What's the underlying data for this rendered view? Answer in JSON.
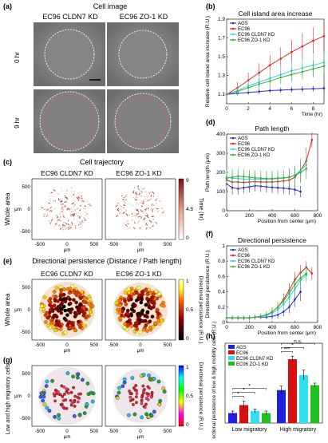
{
  "figure": {
    "panels": {
      "a": {
        "letter": "(a)",
        "title": "Cell image",
        "col1": "EC96 CLDN7 KD",
        "col2": "EC96 ZO-1 KD",
        "row1": "0 hr",
        "row2": "9 hr"
      },
      "c": {
        "letter": "(c)",
        "title": "Cell trajectory",
        "col1": "EC96 CLDN7 KD",
        "col2": "EC96 ZO-1 KD",
        "row_label": "Whole area",
        "colorbar_label": "Time (hr)",
        "colorbar_ticks": [
          "9",
          "4.5",
          "0"
        ]
      },
      "e": {
        "letter": "(e)",
        "title": "Directional persistence (Distance / Path length)",
        "col1": "EC96 CLDN7 KD",
        "col2": "EC96 ZO-1 KD",
        "row_label": "Whole area",
        "colorbar_label": "Directional persistence (R.U.)",
        "colorbar_ticks": [
          "1",
          "0.5",
          "0"
        ]
      },
      "g": {
        "letter": "(g)",
        "row_label": "Low and high migratory cells",
        "colorbar_label": "Directional persistence (R.U.)",
        "colorbar_ticks": [
          "1",
          "0.5",
          "0"
        ]
      },
      "b": {
        "letter": "(b)"
      },
      "d": {
        "letter": "(d)"
      },
      "f": {
        "letter": "(f)"
      },
      "h": {
        "letter": "(h)"
      }
    },
    "map_axes": {
      "x_ticks": [
        "-500",
        "0",
        "500"
      ],
      "y_ticks": [
        "500",
        "0",
        "-500"
      ],
      "unit": "μm"
    }
  },
  "chart_data": [
    {
      "id": "b",
      "type": "line",
      "title": "Cell island area increase",
      "xlabel": "Time (hr)",
      "ylabel": "Relative cell island area increase (R.U.)",
      "xlim": [
        0,
        9
      ],
      "ylim": [
        1.0,
        1.9
      ],
      "x_ticks": [
        0,
        2,
        4,
        6,
        8
      ],
      "y_ticks": [
        1.1,
        1.3,
        1.5,
        1.7,
        1.9
      ],
      "x": [
        0,
        1,
        2,
        3,
        4,
        5,
        6,
        7,
        8,
        9
      ],
      "legend": "top-left",
      "series": [
        {
          "name": "AGS",
          "color": "#2b2bd8",
          "values": [
            1.1,
            1.11,
            1.12,
            1.13,
            1.14,
            1.145,
            1.15,
            1.155,
            1.16,
            1.165
          ],
          "err": [
            0.02,
            0.02,
            0.025,
            0.025,
            0.025,
            0.03,
            0.03,
            0.03,
            0.03,
            0.03
          ]
        },
        {
          "name": "EC96",
          "color": "#e0261f",
          "values": [
            1.1,
            1.17,
            1.25,
            1.33,
            1.41,
            1.48,
            1.55,
            1.61,
            1.67,
            1.72
          ],
          "err": [
            0.03,
            0.06,
            0.08,
            0.1,
            0.11,
            0.12,
            0.13,
            0.14,
            0.14,
            0.15
          ]
        },
        {
          "name": "EC96 CLDN7 KD",
          "color": "#35d3e8",
          "values": [
            1.1,
            1.14,
            1.19,
            1.23,
            1.27,
            1.31,
            1.35,
            1.38,
            1.41,
            1.44
          ],
          "err": [
            0.02,
            0.05,
            0.06,
            0.07,
            0.08,
            0.09,
            0.1,
            0.1,
            0.11,
            0.11
          ]
        },
        {
          "name": "EC96 ZO-1 KD",
          "color": "#3cb43c",
          "values": [
            1.1,
            1.13,
            1.17,
            1.21,
            1.24,
            1.28,
            1.31,
            1.34,
            1.37,
            1.4
          ],
          "err": [
            0.02,
            0.04,
            0.05,
            0.06,
            0.07,
            0.07,
            0.08,
            0.08,
            0.09,
            0.09
          ]
        }
      ]
    },
    {
      "id": "d",
      "type": "line",
      "title": "Path length",
      "xlabel": "Position from center (μm)",
      "ylabel": "Path length (μm)",
      "xlim": [
        0,
        800
      ],
      "ylim": [
        0,
        400
      ],
      "x_ticks": [
        0,
        200,
        400,
        600,
        800
      ],
      "y_ticks": [
        0,
        100,
        200,
        300,
        400
      ],
      "x": [
        0,
        50,
        100,
        150,
        200,
        250,
        300,
        350,
        400,
        450,
        500,
        550,
        600,
        650,
        700,
        750
      ],
      "legend": "top-left",
      "series": [
        {
          "name": "AGS",
          "color": "#2b2bd8",
          "values": [
            140,
            120,
            115,
            120,
            125,
            130,
            128,
            125,
            122,
            120,
            118,
            115,
            110,
            100,
            null,
            null
          ],
          "err": [
            40,
            35,
            30,
            30,
            30,
            30,
            30,
            30,
            30,
            30,
            30,
            30,
            30,
            30,
            null,
            null
          ]
        },
        {
          "name": "EC96",
          "color": "#e0261f",
          "values": [
            160,
            150,
            150,
            148,
            150,
            152,
            150,
            150,
            150,
            152,
            155,
            160,
            175,
            210,
            260,
            370
          ],
          "err": [
            45,
            40,
            40,
            40,
            40,
            40,
            40,
            40,
            40,
            40,
            40,
            45,
            50,
            60,
            70,
            40
          ]
        },
        {
          "name": "EC96 CLDN7 KD",
          "color": "#35d3e8",
          "values": [
            175,
            170,
            168,
            165,
            165,
            165,
            165,
            165,
            165,
            168,
            170,
            175,
            185,
            210,
            240,
            null
          ],
          "err": [
            45,
            40,
            40,
            40,
            40,
            40,
            40,
            40,
            40,
            40,
            40,
            45,
            50,
            55,
            60,
            null
          ]
        },
        {
          "name": "EC96 ZO-1 KD",
          "color": "#3cb43c",
          "values": [
            170,
            175,
            180,
            178,
            175,
            172,
            170,
            168,
            168,
            170,
            172,
            175,
            185,
            200,
            220,
            null
          ],
          "err": [
            45,
            40,
            40,
            40,
            40,
            40,
            40,
            40,
            40,
            40,
            40,
            45,
            50,
            55,
            55,
            null
          ]
        }
      ]
    },
    {
      "id": "f",
      "type": "line",
      "title": "Directional persistence",
      "xlabel": "Position from center (μm)",
      "ylabel": "Directional persistence (R.U.)",
      "xlim": [
        0,
        800
      ],
      "ylim": [
        0,
        1
      ],
      "x_ticks": [
        0,
        200,
        400,
        600,
        800
      ],
      "y_ticks": [
        0,
        0.2,
        0.4,
        0.6,
        0.8,
        1
      ],
      "x": [
        0,
        50,
        100,
        150,
        200,
        250,
        300,
        350,
        400,
        450,
        500,
        550,
        600,
        650,
        700,
        750
      ],
      "legend": "top-left",
      "series": [
        {
          "name": "AGS",
          "color": "#2b2bd8",
          "values": [
            0.06,
            0.06,
            0.06,
            0.06,
            0.06,
            0.07,
            0.07,
            0.07,
            0.08,
            0.1,
            0.14,
            0.2,
            0.3,
            0.4,
            null,
            null
          ],
          "err": [
            0.03,
            0.03,
            0.03,
            0.03,
            0.03,
            0.03,
            0.03,
            0.03,
            0.04,
            0.05,
            0.06,
            0.08,
            0.1,
            0.12,
            null,
            null
          ]
        },
        {
          "name": "EC96",
          "color": "#e0261f",
          "values": [
            0.06,
            0.06,
            0.06,
            0.06,
            0.06,
            0.07,
            0.08,
            0.1,
            0.14,
            0.2,
            0.3,
            0.42,
            0.56,
            0.65,
            0.72,
            0.64
          ],
          "err": [
            0.03,
            0.03,
            0.03,
            0.03,
            0.03,
            0.03,
            0.04,
            0.05,
            0.06,
            0.07,
            0.08,
            0.09,
            0.1,
            0.1,
            0.08,
            0.08
          ]
        },
        {
          "name": "EC96 CLDN7 KD",
          "color": "#35d3e8",
          "values": [
            0.06,
            0.06,
            0.06,
            0.06,
            0.06,
            0.07,
            0.08,
            0.09,
            0.12,
            0.17,
            0.24,
            0.33,
            0.44,
            0.55,
            0.62,
            null
          ],
          "err": [
            0.03,
            0.03,
            0.03,
            0.03,
            0.03,
            0.03,
            0.04,
            0.05,
            0.06,
            0.07,
            0.08,
            0.09,
            0.1,
            0.1,
            0.1,
            null
          ]
        },
        {
          "name": "EC96 ZO-1 KD",
          "color": "#3cb43c",
          "values": [
            0.06,
            0.06,
            0.06,
            0.06,
            0.06,
            0.07,
            0.08,
            0.1,
            0.14,
            0.2,
            0.28,
            0.38,
            0.5,
            0.58,
            0.64,
            null
          ],
          "err": [
            0.03,
            0.03,
            0.03,
            0.03,
            0.03,
            0.03,
            0.04,
            0.05,
            0.06,
            0.07,
            0.08,
            0.09,
            0.1,
            0.1,
            0.1,
            null
          ]
        }
      ]
    },
    {
      "id": "h",
      "type": "bar",
      "title": "",
      "ylabel": "Directional persistence of low & high mobility cells (R.U.)",
      "categories": [
        "Low migratory",
        "High migratory"
      ],
      "ylim": [
        0,
        0.8
      ],
      "legend": "top-left",
      "series": [
        {
          "name": "AGS",
          "color": "#2020e0",
          "values": [
            0.1,
            0.33
          ],
          "err": [
            0.02,
            0.04
          ]
        },
        {
          "name": "EC96",
          "color": "#d81010",
          "values": [
            0.18,
            0.64
          ],
          "err": [
            0.04,
            0.03
          ]
        },
        {
          "name": "EC96 CLDN7 KD",
          "color": "#30e0f0",
          "values": [
            0.12,
            0.48
          ],
          "err": [
            0.02,
            0.05
          ]
        },
        {
          "name": "EC96 ZO-1 KD",
          "color": "#20c020",
          "values": [
            0.1,
            0.38
          ],
          "err": [
            0.02,
            0.02
          ]
        }
      ],
      "annotations": [
        "*",
        "*",
        "*",
        "***",
        "*",
        "n.s."
      ]
    }
  ]
}
